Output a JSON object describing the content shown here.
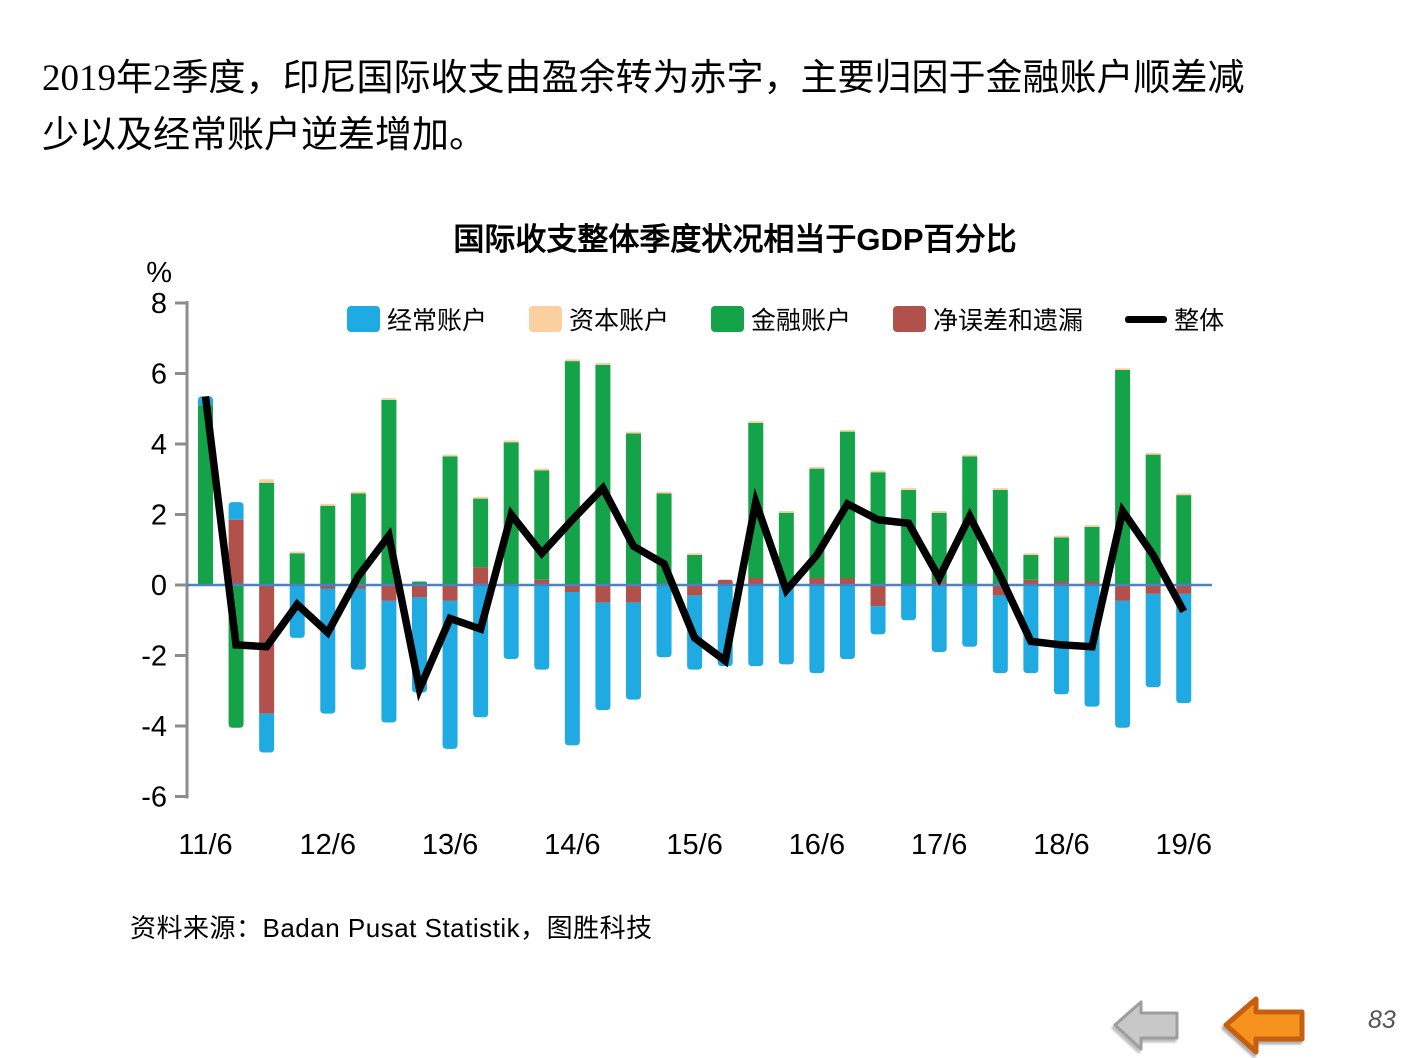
{
  "headline": {
    "line1": "2019年2季度，印尼国际收支由盈余转为赤字，主要归因于金融账户顺差减",
    "line2": "少以及经常账户逆差增加。"
  },
  "chart": {
    "title": "国际收支整体季度状况相当于GDP百分比",
    "unit_label": "%"
  },
  "legend": {
    "items": [
      {
        "label": "经常账户",
        "color": "#1FAAE2",
        "type": "box"
      },
      {
        "label": "资本账户",
        "color": "#FBCFA0",
        "type": "box"
      },
      {
        "label": "金融账户",
        "color": "#15A349",
        "type": "box"
      },
      {
        "label": "净误差和遗漏",
        "color": "#B1514B",
        "type": "box"
      },
      {
        "label": "整体",
        "color": "#000000",
        "type": "line"
      }
    ]
  },
  "chart_data": {
    "type": "bar",
    "subtype": "stacked-bars-with-line-overlay",
    "title": "国际收支整体季度状况相当于GDP百分比",
    "ylabel": "%",
    "ylim": [
      -6,
      8
    ],
    "yticks": [
      8,
      6,
      4,
      2,
      0,
      -2,
      -4,
      -6
    ],
    "x_tick_labels": [
      "11/6",
      "12/6",
      "13/6",
      "14/6",
      "15/6",
      "16/6",
      "17/6",
      "18/6",
      "19/6"
    ],
    "tick_every": 4,
    "n_bars": 33,
    "quarters": [
      "11/6",
      "11/9",
      "11/12",
      "12/3",
      "12/6",
      "12/9",
      "12/12",
      "13/3",
      "13/6",
      "13/9",
      "13/12",
      "14/3",
      "14/6",
      "14/9",
      "14/12",
      "15/3",
      "15/6",
      "15/9",
      "15/12",
      "16/3",
      "16/6",
      "16/9",
      "16/12",
      "17/3",
      "17/6",
      "17/9",
      "17/12",
      "18/3",
      "18/6",
      "18/9",
      "18/12",
      "19/3",
      "19/6"
    ],
    "series": [
      {
        "name": "经常账户",
        "type": "bar",
        "color": "#1FAAE2",
        "values": [
          0.25,
          0.5,
          -1.1,
          -1.5,
          -3.55,
          -2.3,
          -3.45,
          -2.7,
          -4.2,
          -3.75,
          -2.1,
          -2.4,
          -4.35,
          -3.05,
          -2.75,
          -2.05,
          -2.1,
          -2.3,
          -2.3,
          -2.25,
          -2.5,
          -2.1,
          -0.8,
          -1.0,
          -1.9,
          -1.75,
          -2.2,
          -2.5,
          -3.1,
          -3.45,
          -3.6,
          -2.65,
          -3.1
        ]
      },
      {
        "name": "资本账户",
        "type": "bar",
        "color": "#FBCFA0",
        "values": [
          0,
          0,
          0.1,
          0.05,
          0.05,
          0.05,
          0.05,
          0,
          0.05,
          0.05,
          0.05,
          0.05,
          0.05,
          0.05,
          0.05,
          0.05,
          0.05,
          0,
          0.05,
          0.05,
          0.05,
          0.05,
          0.05,
          0.05,
          0.05,
          0.05,
          0.05,
          0.05,
          0.05,
          0.05,
          0.05,
          0.05,
          0.05
        ]
      },
      {
        "name": "金融账户",
        "type": "bar",
        "color": "#15A349",
        "values": [
          5.1,
          -4.05,
          2.9,
          0.9,
          2.25,
          2.6,
          5.25,
          0.1,
          3.65,
          1.95,
          4.05,
          3.1,
          6.35,
          6.25,
          4.3,
          2.6,
          0.85,
          0,
          4.4,
          2.05,
          3.1,
          4.15,
          3.2,
          2.7,
          1.95,
          3.65,
          2.7,
          0.7,
          1.25,
          1.55,
          6.1,
          3.7,
          2.55
        ]
      },
      {
        "name": "净误差和遗漏",
        "type": "bar",
        "color": "#B1514B",
        "values": [
          0,
          1.85,
          -3.65,
          0,
          -0.1,
          -0.1,
          -0.45,
          -0.35,
          -0.45,
          0.5,
          0,
          0.15,
          -0.2,
          -0.5,
          -0.5,
          0,
          -0.3,
          0.15,
          0.2,
          0,
          0.2,
          0.2,
          -0.6,
          0,
          0.1,
          0,
          -0.3,
          0.15,
          0.1,
          0.1,
          -0.45,
          -0.25,
          -0.25
        ]
      },
      {
        "name": "整体",
        "type": "line",
        "color": "#000000",
        "values": [
          5.35,
          -1.7,
          -1.75,
          -0.55,
          -1.35,
          0.25,
          1.4,
          -2.95,
          -0.95,
          -1.25,
          2.0,
          0.9,
          1.85,
          2.75,
          1.1,
          0.6,
          -1.5,
          -2.15,
          2.35,
          -0.15,
          0.85,
          2.3,
          1.85,
          1.75,
          0.2,
          1.95,
          0.25,
          -1.6,
          -1.7,
          -1.75,
          2.1,
          0.85,
          -0.75
        ]
      }
    ],
    "stack_order_positive": [
      "净误差和遗漏",
      "金融账户",
      "资本账户",
      "经常账户"
    ],
    "stack_order_negative": [
      "金融账户",
      "净误差和遗漏",
      "经常账户"
    ],
    "baseline_color": "#4F81BD",
    "axis_color": "#8C8C8C",
    "legend_position": "top-inside",
    "grid": false
  },
  "source": {
    "text": "资料来源：Badan Pusat Statistik，图胜科技"
  },
  "footer": {
    "page_number": "83",
    "back_arrow_gray": {
      "fill": "#C8C8C8",
      "stroke": "#9E9E9E"
    },
    "back_arrow_orange": {
      "fill": "#F6921E",
      "stroke": "#C55F11"
    }
  }
}
